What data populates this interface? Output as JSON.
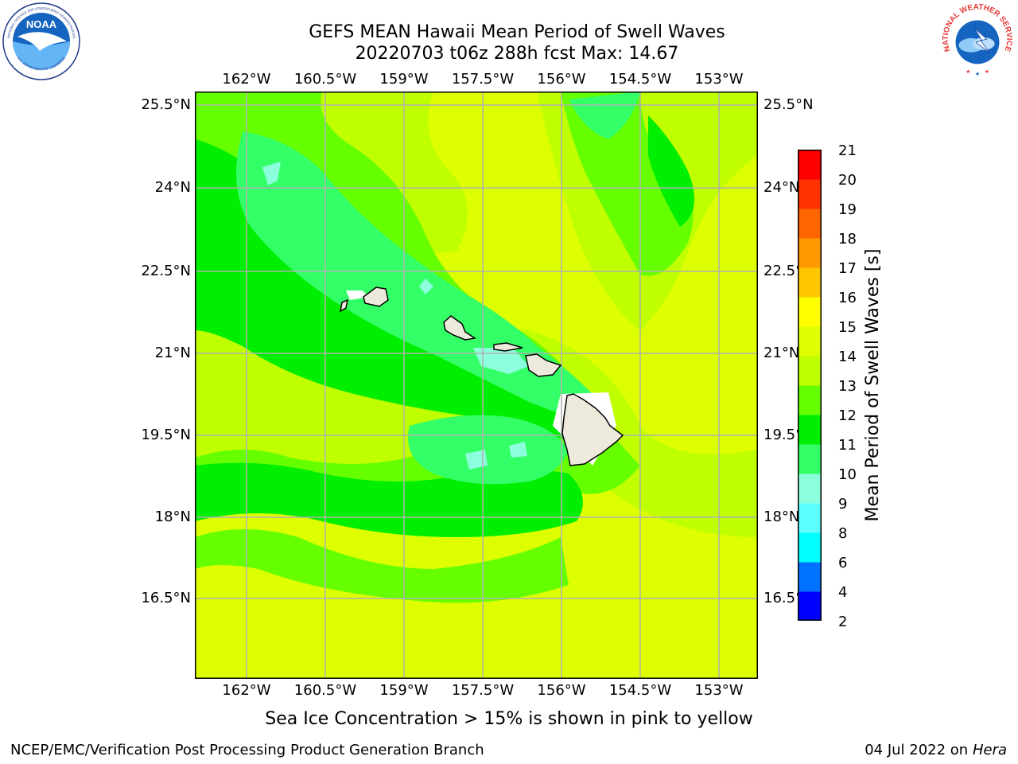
{
  "title": {
    "line1": "GEFS MEAN Hawaii Mean Period of Swell Waves",
    "line2": "20220703 t06z 288h fcst   Max: 14.67"
  },
  "logos": {
    "noaa_text": "NOAA",
    "noaa_ring_top": "NATIONAL OCEANIC AND ATMOSPHERIC ADMINISTRATION",
    "noaa_ring_bottom": "U.S. DEPARTMENT OF COMMERCE",
    "nws_ring": "NATIONAL WEATHER SERVICE"
  },
  "map": {
    "lon_labels": [
      "162°W",
      "160.5°W",
      "159°W",
      "157.5°W",
      "156°W",
      "154.5°W",
      "153°W"
    ],
    "lat_labels": [
      "25.5°N",
      "24°N",
      "22.5°N",
      "21°N",
      "19.5°N",
      "18°N",
      "16.5°N"
    ],
    "lat_labels_right": [
      "25.5°N",
      "24°N",
      "22.5°",
      "21°N",
      "19.5°",
      "18°N",
      "16.5°"
    ],
    "grid": true,
    "grid_color": "#b0b0b0",
    "land_color": "#eeeadb",
    "coast_color": "#000000",
    "islands": [
      "Niihau",
      "Kauai",
      "Oahu",
      "Molokai",
      "Maui",
      "Hawaii"
    ]
  },
  "colorbar": {
    "label": "Mean Period of Swell Waves [s]",
    "ticks": [
      "2",
      "4",
      "6",
      "8",
      "9",
      "10",
      "11",
      "12",
      "13",
      "14",
      "15",
      "16",
      "17",
      "18",
      "19",
      "20",
      "21"
    ],
    "colors": [
      "#0000ff",
      "#0072ff",
      "#00ffff",
      "#5cffff",
      "#8cffdc",
      "#33ff66",
      "#00ee00",
      "#66ff00",
      "#bfff00",
      "#ddff00",
      "#ffff00",
      "#ffc600",
      "#ff9900",
      "#ff6600",
      "#ff3300",
      "#ff0000"
    ]
  },
  "subtitle": "Sea Ice Concentration > 15% is shown in pink to yellow",
  "footer": {
    "left": "NCEP/EMC/Verification Post Processing Product Generation Branch",
    "right_prefix": "04 Jul 2022 on ",
    "right_host": "Hera"
  }
}
